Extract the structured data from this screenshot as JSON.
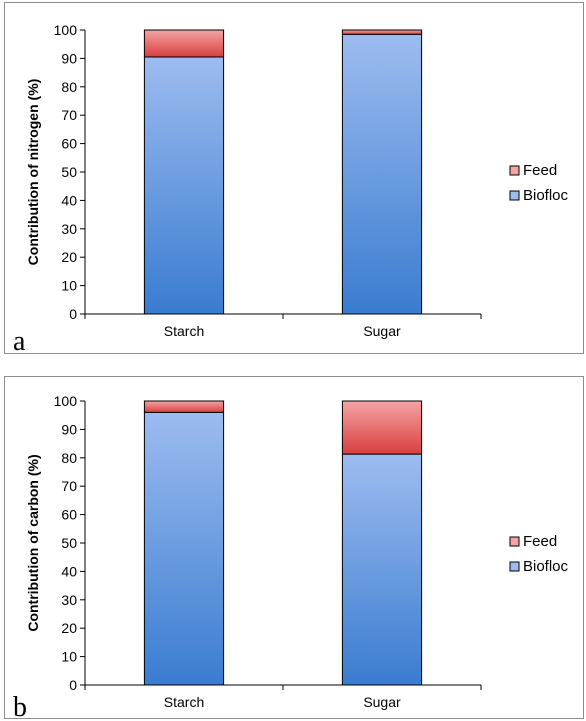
{
  "colors": {
    "biofloc_top": "#9dbcf0",
    "biofloc_bottom": "#3a7cd0",
    "feed_top": "#f4a4a4",
    "feed_bottom": "#d93f3f",
    "axis": "#000000"
  },
  "chart_data": [
    {
      "type": "bar",
      "stacked": true,
      "panel_label": "a",
      "categories": [
        "Starch",
        "Sugar"
      ],
      "series": [
        {
          "name": "Biofloc",
          "values": [
            90.5,
            98.5
          ]
        },
        {
          "name": "Feed",
          "values": [
            9.5,
            1.5
          ]
        }
      ],
      "ylabel": "Contribution of nitrogen (%)",
      "xlabel": "",
      "ylim": [
        0,
        100
      ],
      "yticks": [
        "0",
        "10",
        "20",
        "30",
        "40",
        "50",
        "60",
        "70",
        "80",
        "90",
        "100"
      ],
      "legend": [
        "Feed",
        "Biofloc"
      ],
      "legend_position": "right",
      "grid": false
    },
    {
      "type": "bar",
      "stacked": true,
      "panel_label": "b",
      "categories": [
        "Starch",
        "Sugar"
      ],
      "series": [
        {
          "name": "Biofloc",
          "values": [
            96,
            81.3
          ]
        },
        {
          "name": "Feed",
          "values": [
            4,
            18.7
          ]
        }
      ],
      "ylabel": "Contribution of carbon (%)",
      "xlabel": "",
      "ylim": [
        0,
        100
      ],
      "yticks": [
        "0",
        "10",
        "20",
        "30",
        "40",
        "50",
        "60",
        "70",
        "80",
        "90",
        "100"
      ],
      "legend": [
        "Feed",
        "Biofloc"
      ],
      "legend_position": "right",
      "grid": false
    }
  ]
}
